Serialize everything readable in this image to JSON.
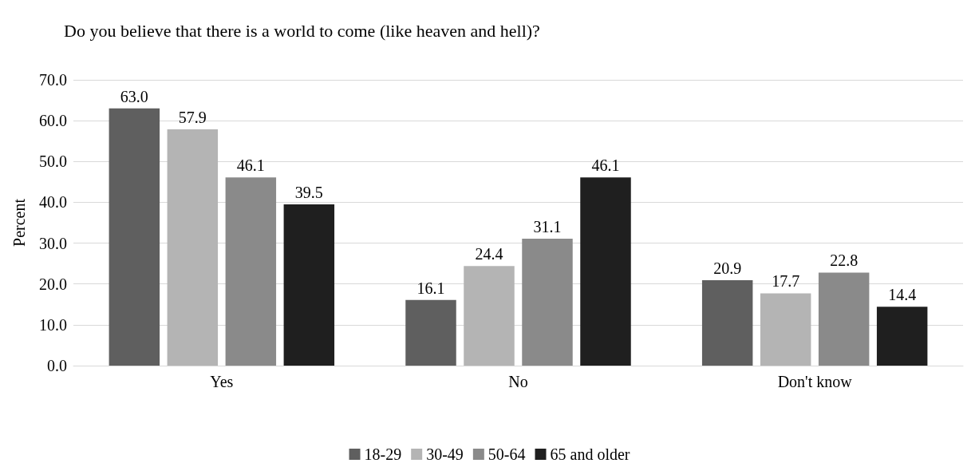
{
  "chart_data": {
    "type": "bar",
    "title": "Do you believe that there is a world to come (like heaven and hell)?",
    "ylabel": "Percent",
    "categories": [
      "Yes",
      "No",
      "Don't know"
    ],
    "series": [
      {
        "name": "18-29",
        "color": "#5f5f5f",
        "values": [
          63.0,
          16.1,
          20.9
        ],
        "value_labels": [
          "63.0",
          "16.1",
          "20.9"
        ]
      },
      {
        "name": "30-49",
        "color": "#b4b4b4",
        "values": [
          57.9,
          24.4,
          17.7
        ],
        "value_labels": [
          "57.9",
          "24.4",
          "17.7"
        ]
      },
      {
        "name": "50-64",
        "color": "#8a8a8a",
        "values": [
          46.1,
          31.1,
          22.8
        ],
        "value_labels": [
          "46.1",
          "31.1",
          "22.8"
        ]
      },
      {
        "name": "65 and older",
        "color": "#1f1f1f",
        "values": [
          39.5,
          46.1,
          14.4
        ],
        "value_labels": [
          "39.5",
          "46.1",
          "14.4"
        ]
      }
    ],
    "ylim": [
      0,
      70
    ],
    "yticks": [
      {
        "value": 0,
        "label": "0.0"
      },
      {
        "value": 10,
        "label": "10.0"
      },
      {
        "value": 20,
        "label": "20.0"
      },
      {
        "value": 30,
        "label": "30.0"
      },
      {
        "value": 40,
        "label": "40.0"
      },
      {
        "value": 50,
        "label": "50.0"
      },
      {
        "value": 60,
        "label": "60.0"
      },
      {
        "value": 70,
        "label": "70.0"
      }
    ],
    "grid": "y",
    "legend": "bottom"
  }
}
